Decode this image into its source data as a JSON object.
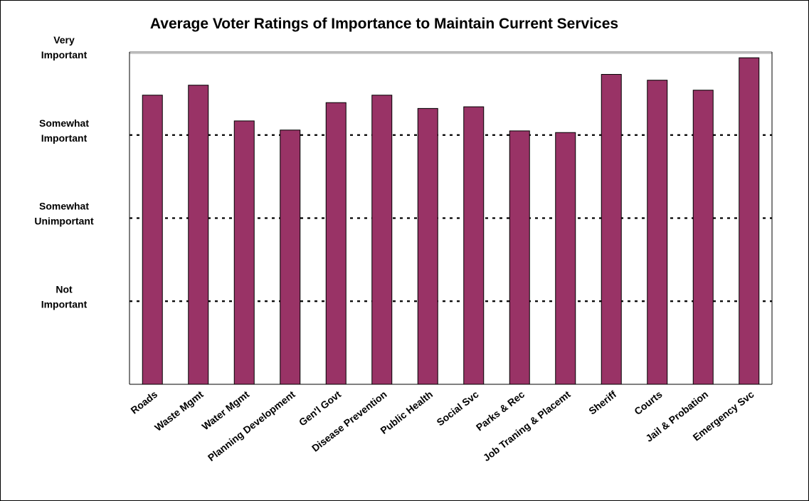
{
  "chart_data": {
    "type": "bar",
    "title": "Average Voter Ratings of Importance to Maintain Current Services",
    "categories": [
      "Roads",
      "Waste Mgmt",
      "Water Mgmt",
      "Planning Development",
      "Gen'l Govt",
      "Disease Prevention",
      "Public Health",
      "Social Svc",
      "Parks & Rec",
      "Job Traning & Placemt",
      "Sheriff",
      "Courts",
      "Jail & Probation",
      "Emergency Svc"
    ],
    "values": [
      3.48,
      3.6,
      3.17,
      3.06,
      3.39,
      3.48,
      3.32,
      3.34,
      3.05,
      3.03,
      3.73,
      3.66,
      3.54,
      3.93
    ],
    "ylim": [
      0,
      4
    ],
    "y_tick_values": [
      1,
      2,
      3,
      4
    ],
    "y_tick_labels": [
      [
        "Not",
        "Important"
      ],
      [
        "Somewhat",
        "Unimportant"
      ],
      [
        "Somewhat",
        "Important"
      ],
      [
        "Very",
        "Important"
      ]
    ],
    "grid": "dashed horizontal",
    "bar_color": "#993366"
  }
}
